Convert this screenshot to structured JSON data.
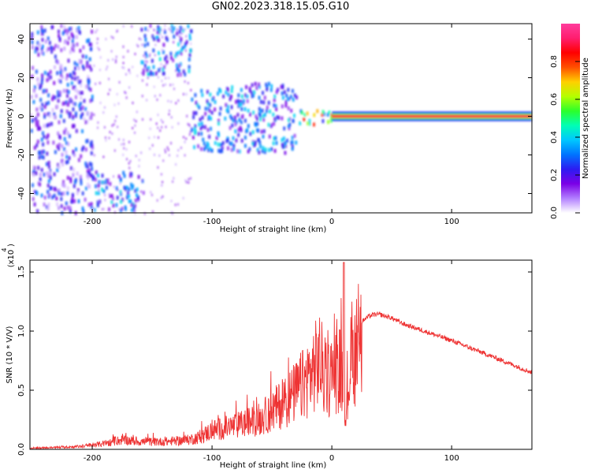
{
  "title": "GN02.2023.318.15.05.G10",
  "chart_data": [
    {
      "type": "heatmap",
      "xlabel": "Height of straight line (km)",
      "ylabel": "Frequency (Hz)",
      "xlim": [
        -252,
        167
      ],
      "ylim": [
        -50,
        48
      ],
      "xticks": [
        -200,
        -100,
        0,
        100
      ],
      "yticks": [
        -40,
        -20,
        0,
        20,
        40
      ],
      "colorbar": {
        "label": "Normalized spectral amplitude",
        "range": [
          0,
          1
        ],
        "ticks": [
          "0.0",
          "0.2",
          "0.4",
          "0.6",
          "0.8"
        ],
        "colors": [
          "#ffffff",
          "#b27fff",
          "#7b00e6",
          "#2c1cf2",
          "#0074ff",
          "#00c8ff",
          "#00ffb4",
          "#2bff2b",
          "#b4ff00",
          "#ffd000",
          "#ff5000",
          "#ff0000",
          "#ff1e6e",
          "#ff3c9c"
        ]
      },
      "regions": [
        {
          "x": [
            -252,
            -200
          ],
          "y": [
            -50,
            48
          ],
          "intensity": 0.3
        },
        {
          "x": [
            -200,
            -158
          ],
          "y": [
            -48,
            -28
          ],
          "intensity": 0.35
        },
        {
          "x": [
            -160,
            -118
          ],
          "y": [
            22,
            48
          ],
          "intensity": 0.35
        },
        {
          "x": [
            -118,
            -30
          ],
          "y": [
            -18,
            18
          ],
          "intensity": 0.35
        },
        {
          "x": [
            -30,
            0
          ],
          "y": [
            -4,
            4
          ],
          "intensity": 0.7
        },
        {
          "x": [
            0,
            167
          ],
          "y": [
            -1,
            1
          ],
          "intensity": 0.95
        }
      ]
    },
    {
      "type": "line",
      "xlabel": "Height of straight line (km)",
      "ylabel": "SNR (10 * V/V)",
      "yscale_label": "(x10",
      "yscale_exp": "4",
      "xlim": [
        -252,
        167
      ],
      "ylim": [
        0,
        1.6
      ],
      "xticks": [
        -200,
        -100,
        0,
        100
      ],
      "yticks": [
        "0.0",
        "0.5",
        "1.0",
        "1.5"
      ],
      "color": "#ee3333",
      "series": [
        {
          "x": [
            -252,
            -230,
            -210,
            -190,
            -175,
            -160,
            -140,
            -120,
            -110,
            -100,
            -80,
            -60,
            -50,
            -40,
            -30,
            -20,
            -15,
            -10,
            -5,
            0,
            5,
            10,
            12,
            15,
            20,
            25,
            30,
            35,
            40,
            50,
            60,
            80,
            100,
            120,
            140,
            167
          ],
          "y": [
            0.01,
            0.02,
            0.03,
            0.06,
            0.1,
            0.08,
            0.08,
            0.1,
            0.13,
            0.2,
            0.25,
            0.32,
            0.4,
            0.5,
            0.6,
            0.75,
            0.85,
            0.95,
            0.7,
            0.8,
            0.85,
            0.85,
            0.3,
            0.9,
            1.02,
            1.08,
            1.12,
            1.14,
            1.14,
            1.11,
            1.06,
            0.99,
            0.92,
            0.84,
            0.76,
            0.65
          ]
        }
      ]
    }
  ]
}
